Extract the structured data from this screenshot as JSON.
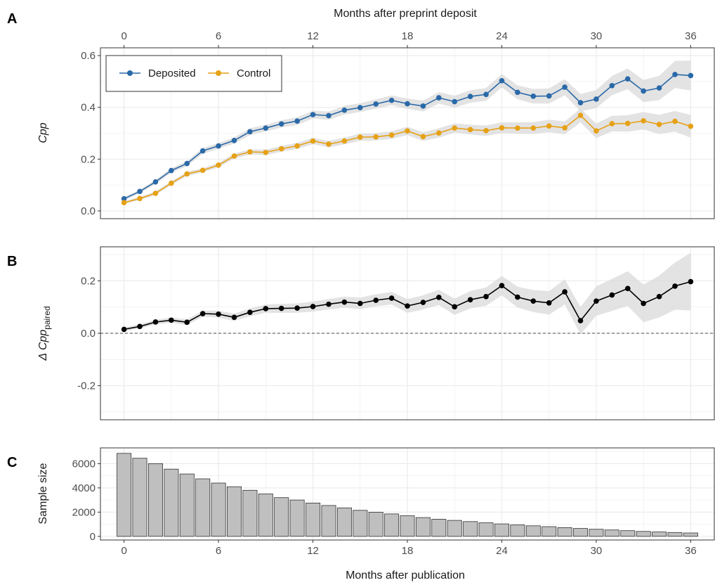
{
  "panel_labels": [
    "A",
    "B",
    "C"
  ],
  "top_axis_title": "Months after preprint deposit",
  "bottom_axis_title": "Months after publication",
  "colors": {
    "deposited": "#2a69a8",
    "control": "#e6a116",
    "delta": "#000000",
    "bar_fill": "#bfbfbf",
    "bar_stroke": "#333333",
    "ribbon": "#d9d9d9",
    "grid": "#ebebeb"
  },
  "chart_data": [
    {
      "panel": "A",
      "type": "line",
      "ylabel": "Cpp",
      "xlim": [
        -1.5,
        37.5
      ],
      "ylim": [
        -0.03,
        0.63
      ],
      "x_ticks": [
        0,
        6,
        12,
        18,
        24,
        30,
        36
      ],
      "y_ticks": [
        0.0,
        0.2,
        0.4,
        0.6
      ],
      "y_tick_labels": [
        "0.0",
        "0.2",
        "0.4",
        "0.6"
      ],
      "legend_placement": "top-left",
      "x": [
        0,
        1,
        2,
        3,
        4,
        5,
        6,
        7,
        8,
        9,
        10,
        11,
        12,
        13,
        14,
        15,
        16,
        17,
        18,
        19,
        20,
        21,
        22,
        23,
        24,
        25,
        26,
        27,
        28,
        29,
        30,
        31,
        32,
        33,
        34,
        35,
        36
      ],
      "series": [
        {
          "name": "Deposited",
          "color": "#2a69a8",
          "values": [
            0.047,
            0.075,
            0.112,
            0.156,
            0.183,
            0.232,
            0.251,
            0.272,
            0.306,
            0.32,
            0.336,
            0.347,
            0.372,
            0.368,
            0.389,
            0.399,
            0.413,
            0.427,
            0.414,
            0.405,
            0.437,
            0.422,
            0.442,
            0.45,
            0.503,
            0.458,
            0.443,
            0.444,
            0.478,
            0.418,
            0.432,
            0.484,
            0.51,
            0.463,
            0.475,
            0.527,
            0.523
          ],
          "ribbon_halfwidth": [
            0.006,
            0.007,
            0.008,
            0.009,
            0.01,
            0.011,
            0.011,
            0.012,
            0.013,
            0.013,
            0.014,
            0.015,
            0.015,
            0.016,
            0.017,
            0.017,
            0.018,
            0.019,
            0.02,
            0.021,
            0.022,
            0.023,
            0.024,
            0.025,
            0.026,
            0.027,
            0.028,
            0.029,
            0.031,
            0.033,
            0.035,
            0.037,
            0.04,
            0.043,
            0.047,
            0.052,
            0.058
          ]
        },
        {
          "name": "Control",
          "color": "#e6a116",
          "values": [
            0.032,
            0.048,
            0.068,
            0.107,
            0.143,
            0.157,
            0.177,
            0.212,
            0.228,
            0.226,
            0.24,
            0.251,
            0.27,
            0.258,
            0.27,
            0.285,
            0.286,
            0.293,
            0.309,
            0.287,
            0.301,
            0.32,
            0.314,
            0.31,
            0.321,
            0.32,
            0.32,
            0.328,
            0.321,
            0.369,
            0.309,
            0.337,
            0.338,
            0.348,
            0.334,
            0.346,
            0.327
          ],
          "ribbon_halfwidth": [
            0.005,
            0.006,
            0.007,
            0.007,
            0.008,
            0.008,
            0.009,
            0.01,
            0.01,
            0.011,
            0.011,
            0.012,
            0.012,
            0.013,
            0.013,
            0.014,
            0.014,
            0.015,
            0.016,
            0.017,
            0.018,
            0.018,
            0.019,
            0.02,
            0.021,
            0.022,
            0.023,
            0.024,
            0.025,
            0.027,
            0.028,
            0.03,
            0.032,
            0.034,
            0.037,
            0.04,
            0.044
          ]
        }
      ]
    },
    {
      "panel": "B",
      "type": "line",
      "ylabel": "Δ Cpp",
      "ylabel_subscript": "paired",
      "xlim": [
        -1.5,
        37.5
      ],
      "ylim": [
        -0.33,
        0.33
      ],
      "x_ticks": [
        0,
        6,
        12,
        18,
        24,
        30,
        36
      ],
      "y_ticks": [
        -0.2,
        0.0,
        0.2
      ],
      "y_tick_labels": [
        "-0.2",
        "0.0",
        "0.2"
      ],
      "reference_line": 0,
      "x": [
        0,
        1,
        2,
        3,
        4,
        5,
        6,
        7,
        8,
        9,
        10,
        11,
        12,
        13,
        14,
        15,
        16,
        17,
        18,
        19,
        20,
        21,
        22,
        23,
        24,
        25,
        26,
        27,
        28,
        29,
        30,
        31,
        32,
        33,
        34,
        35,
        36
      ],
      "series": [
        {
          "color": "#000000",
          "values": [
            0.015,
            0.026,
            0.043,
            0.05,
            0.042,
            0.075,
            0.073,
            0.061,
            0.08,
            0.094,
            0.095,
            0.096,
            0.102,
            0.111,
            0.119,
            0.114,
            0.126,
            0.134,
            0.104,
            0.118,
            0.137,
            0.101,
            0.128,
            0.14,
            0.182,
            0.138,
            0.123,
            0.116,
            0.158,
            0.048,
            0.123,
            0.146,
            0.171,
            0.114,
            0.14,
            0.18,
            0.197
          ],
          "ribbon_halfwidth": [
            0.007,
            0.008,
            0.009,
            0.01,
            0.011,
            0.012,
            0.013,
            0.014,
            0.015,
            0.016,
            0.017,
            0.018,
            0.019,
            0.02,
            0.021,
            0.022,
            0.023,
            0.024,
            0.026,
            0.027,
            0.029,
            0.031,
            0.033,
            0.035,
            0.037,
            0.04,
            0.042,
            0.045,
            0.048,
            0.052,
            0.056,
            0.061,
            0.066,
            0.072,
            0.08,
            0.09,
            0.11
          ]
        }
      ]
    },
    {
      "panel": "C",
      "type": "bar",
      "ylabel": "Sample size",
      "xlabel": "Months after publication",
      "xlim": [
        -1.5,
        37.5
      ],
      "ylim": [
        -300,
        7300
      ],
      "x_ticks": [
        0,
        6,
        12,
        18,
        24,
        30,
        36
      ],
      "y_ticks": [
        0,
        2000,
        4000,
        6000
      ],
      "y_tick_labels": [
        "0",
        "2000",
        "4000",
        "6000"
      ],
      "categories": [
        0,
        1,
        2,
        3,
        4,
        5,
        6,
        7,
        8,
        9,
        10,
        11,
        12,
        13,
        14,
        15,
        16,
        17,
        18,
        19,
        20,
        21,
        22,
        23,
        24,
        25,
        26,
        27,
        28,
        29,
        30,
        31,
        32,
        33,
        34,
        35,
        36
      ],
      "values": [
        6850,
        6450,
        6000,
        5550,
        5150,
        4750,
        4400,
        4100,
        3800,
        3500,
        3200,
        3000,
        2750,
        2550,
        2350,
        2150,
        2000,
        1850,
        1700,
        1550,
        1420,
        1320,
        1220,
        1120,
        1030,
        950,
        870,
        800,
        720,
        650,
        590,
        530,
        470,
        410,
        360,
        320,
        280
      ]
    }
  ]
}
